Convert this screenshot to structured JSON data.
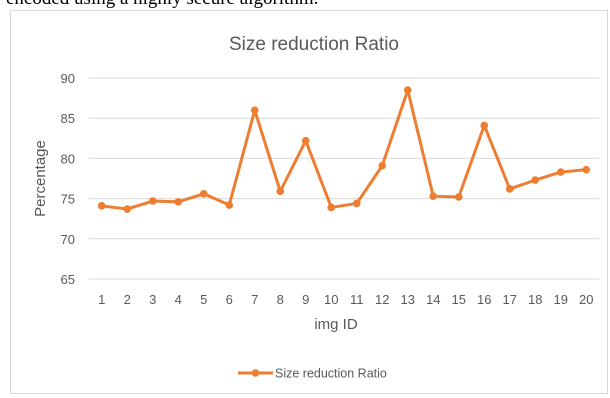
{
  "page": {
    "partial_text": "encoded using a highly secure algorithm."
  },
  "colors": {
    "series": "#ED7D31",
    "grid": "#d9d9d9",
    "axis_text": "#595959",
    "title_text": "#595959"
  },
  "chart_data": {
    "type": "line",
    "title": "Size reduction Ratio",
    "xlabel": "img ID",
    "ylabel": "Percentage",
    "ylim": [
      65,
      90
    ],
    "yticks": [
      65,
      70,
      75,
      80,
      85,
      90
    ],
    "grid": true,
    "legend": {
      "position": "bottom",
      "entries": [
        "Size reduction Ratio"
      ]
    },
    "categories": [
      "1",
      "2",
      "3",
      "4",
      "5",
      "6",
      "7",
      "8",
      "9",
      "10",
      "11",
      "12",
      "13",
      "14",
      "15",
      "16",
      "17",
      "18",
      "19",
      "20"
    ],
    "series": [
      {
        "name": "Size reduction Ratio",
        "values": [
          74.1,
          73.7,
          74.7,
          74.6,
          75.6,
          74.2,
          86.0,
          75.9,
          82.2,
          73.9,
          74.4,
          79.1,
          88.5,
          75.3,
          75.2,
          84.1,
          76.2,
          77.3,
          78.3,
          78.6
        ]
      }
    ]
  }
}
